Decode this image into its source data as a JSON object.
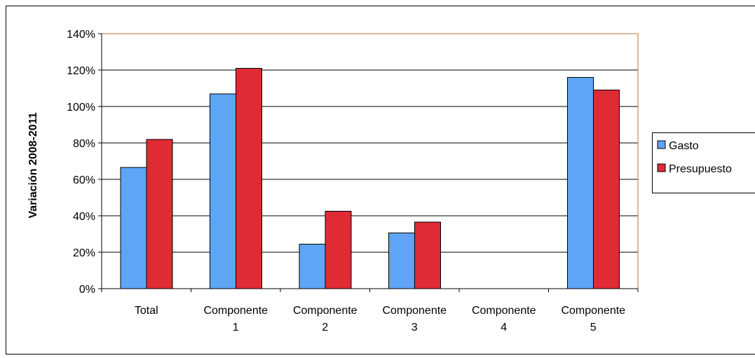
{
  "colors": {
    "gasto": "#5fa5f7",
    "presupuesto": "#e02b35",
    "plot_border": "#b87333",
    "gridline": "#000000",
    "bar_outline": "#000000"
  },
  "chart_data": {
    "type": "bar",
    "title": "",
    "xlabel": "",
    "ylabel": "Variación 2008-2011",
    "ylim": [
      0,
      1.4
    ],
    "yticks": [
      0,
      0.2,
      0.4,
      0.6,
      0.8,
      1.0,
      1.2,
      1.4
    ],
    "ytick_labels": [
      "0%",
      "20%",
      "40%",
      "60%",
      "80%",
      "100%",
      "120%",
      "140%"
    ],
    "grid": true,
    "legend_position": "right",
    "categories": [
      [
        "Total"
      ],
      [
        "Componente",
        "1"
      ],
      [
        "Componente",
        "2"
      ],
      [
        "Componente",
        "3"
      ],
      [
        "Componente",
        "4"
      ],
      [
        "Componente",
        "5"
      ]
    ],
    "series": [
      {
        "name": "Gasto",
        "values": [
          0.665,
          1.07,
          0.245,
          0.305,
          0,
          1.16
        ]
      },
      {
        "name": "Presupuesto",
        "values": [
          0.82,
          1.21,
          0.425,
          0.365,
          0,
          1.09
        ]
      }
    ]
  }
}
